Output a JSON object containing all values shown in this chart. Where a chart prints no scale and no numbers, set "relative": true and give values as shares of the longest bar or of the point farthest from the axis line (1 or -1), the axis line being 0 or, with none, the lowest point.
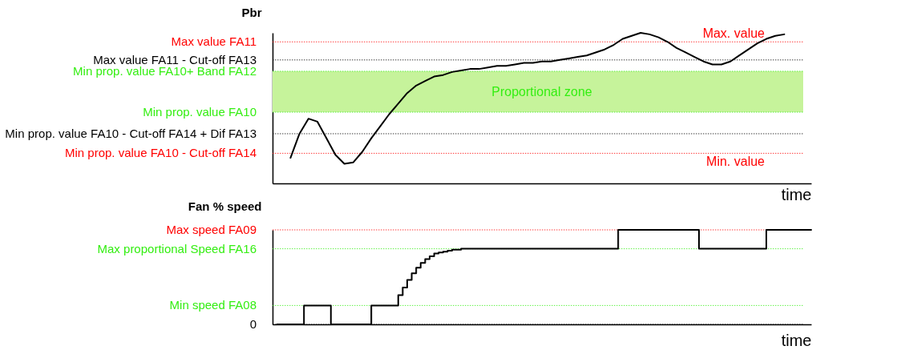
{
  "chart_data": [
    {
      "type": "line",
      "ylabel": "Pbr",
      "xlabel": "time",
      "relative": true,
      "tick_labels": false,
      "marker": "none",
      "categories": [
        null,
        null,
        null,
        null,
        null,
        null,
        null,
        null,
        null,
        null,
        null,
        null,
        null,
        null,
        null,
        null,
        null,
        null,
        null,
        null,
        null,
        null,
        null,
        null,
        null,
        null,
        null,
        null,
        null,
        null,
        null,
        null,
        null,
        null,
        null,
        null,
        null,
        null,
        null,
        null,
        null,
        null,
        null,
        null,
        null,
        null,
        null,
        null,
        null,
        null,
        null,
        null,
        null,
        null,
        null,
        null,
        null,
        null,
        null,
        null,
        null
      ],
      "series": [
        {
          "color": "#000000",
          "values": [
            null,
            null,
            0.17,
            0.33,
            0.43,
            0.41,
            0.3,
            0.19,
            0.13,
            0.14,
            0.21,
            0.3,
            0.38,
            0.46,
            0.53,
            0.6,
            0.65,
            0.68,
            0.71,
            0.72,
            0.74,
            0.75,
            0.76,
            0.76,
            0.77,
            0.78,
            0.78,
            0.79,
            0.8,
            0.8,
            0.81,
            0.81,
            0.82,
            0.83,
            0.84,
            0.85,
            0.87,
            0.89,
            0.92,
            0.96,
            0.98,
            1,
            0.99,
            0.97,
            0.94,
            0.9,
            0.87,
            0.84,
            0.81,
            0.79,
            0.79,
            0.81,
            0.85,
            0.89,
            0.93,
            0.96,
            0.98,
            0.99,
            null,
            null,
            null
          ]
        }
      ],
      "ref_lines": [
        {
          "axis": "y",
          "value": 0.94,
          "label": "Max value FA11",
          "color": "#ff0000",
          "line_style": "dotted"
        },
        {
          "axis": "y",
          "value": 0.82,
          "label": "Max value FA11 - Cut-off FA13",
          "color": "#000000",
          "line_style": "dotted"
        },
        {
          "axis": "y",
          "value": 0.745,
          "label": "Min prop. value FA10+ Band FA12",
          "color": "#33ee11",
          "line_style": "dotted"
        },
        {
          "axis": "y",
          "value": 0.473,
          "label": "Min prop. value FA10",
          "color": "#33ee11",
          "line_style": "dotted"
        },
        {
          "axis": "y",
          "value": 0.33,
          "label": "Min prop. value FA10 - Cut-off FA14 + Dif FA13",
          "color": "#000000",
          "line_style": "dotted"
        },
        {
          "axis": "y",
          "value": 0.2,
          "label": "Min prop. value FA10 - Cut-off FA14",
          "color": "#ff0000",
          "line_style": "dotted"
        }
      ],
      "bands": [
        {
          "axis": "y",
          "from": 0.473,
          "to": 0.745,
          "label": "Proportional zone",
          "color": "#c6f39b"
        }
      ],
      "annotations": [
        {
          "text": "Max. value",
          "y": 0.94
        },
        {
          "text": "Min. value",
          "y": 0.2
        }
      ]
    },
    {
      "type": "step",
      "ylabel": "Fan %\nspeed",
      "xlabel": "time",
      "relative": true,
      "tick_labels": false,
      "marker": "none",
      "categories": [
        null,
        null,
        null,
        null,
        null,
        null,
        null,
        null,
        null,
        null,
        null,
        null,
        null,
        null,
        null,
        null,
        null,
        null,
        null,
        null,
        null,
        null,
        null,
        null,
        null,
        null,
        null,
        null,
        null,
        null,
        null,
        null,
        null,
        null,
        null,
        null,
        null,
        null,
        null,
        null,
        null,
        null,
        null,
        null,
        null,
        null,
        null,
        null,
        null,
        null,
        null,
        null,
        null,
        null,
        null,
        null,
        null,
        null,
        null,
        null,
        null,
        null,
        null,
        null,
        null,
        null,
        null,
        null,
        null,
        null,
        null,
        null,
        null,
        null,
        null,
        null,
        null,
        null,
        null,
        null,
        null,
        null,
        null,
        null,
        null,
        null,
        null,
        null,
        null,
        null,
        null,
        null,
        null,
        null,
        null,
        null,
        null,
        null,
        null,
        null,
        null,
        null,
        null,
        null,
        null,
        null,
        null,
        null,
        null,
        null,
        null,
        null,
        null,
        null,
        null,
        null,
        null,
        null,
        null,
        null,
        null
      ],
      "series": [
        {
          "color": "#000000",
          "values": [
            null,
            0,
            0,
            0,
            0,
            0,
            0,
            0.2,
            0.2,
            0.2,
            0.2,
            0.2,
            0.2,
            0,
            0,
            0,
            0,
            0,
            0,
            0,
            0,
            0,
            0.2,
            0.2,
            0.2,
            0.2,
            0.2,
            0.2,
            0.31,
            0.39,
            0.47,
            0.54,
            0.6,
            0.65,
            0.69,
            0.72,
            0.75,
            0.76,
            0.77,
            0.78,
            0.79,
            0.79,
            0.8,
            0.8,
            0.8,
            0.8,
            0.8,
            0.8,
            0.8,
            0.8,
            0.8,
            0.8,
            0.8,
            0.8,
            0.8,
            0.8,
            0.8,
            0.8,
            0.8,
            0.8,
            0.8,
            0.8,
            0.8,
            0.8,
            0.8,
            0.8,
            0.8,
            0.8,
            0.8,
            0.8,
            0.8,
            0.8,
            0.8,
            0.8,
            0.8,
            0.8,
            0.8,
            1,
            1,
            1,
            1,
            1,
            1,
            1,
            1,
            1,
            1,
            1,
            1,
            1,
            1,
            1,
            1,
            1,
            1,
            0.8,
            0.8,
            0.8,
            0.8,
            0.8,
            0.8,
            0.8,
            0.8,
            0.8,
            0.8,
            0.8,
            0.8,
            0.8,
            0.8,
            0.8,
            1,
            1,
            1,
            1,
            1,
            1,
            1,
            1,
            1,
            1,
            1
          ]
        }
      ],
      "ref_lines": [
        {
          "axis": "y",
          "value": 1,
          "label": "Max speed FA09",
          "color": "#ff0000",
          "line_style": "dotted"
        },
        {
          "axis": "y",
          "value": 0.8,
          "label": "Max proportional Speed FA16",
          "color": "#33ee11",
          "line_style": "dotted"
        },
        {
          "axis": "y",
          "value": 0.2,
          "label": "Min speed FA08",
          "color": "#33ee11",
          "line_style": "dotted"
        },
        {
          "axis": "y",
          "value": 0,
          "label": "0",
          "color": "#000000",
          "line_style": "dotted"
        }
      ]
    }
  ]
}
